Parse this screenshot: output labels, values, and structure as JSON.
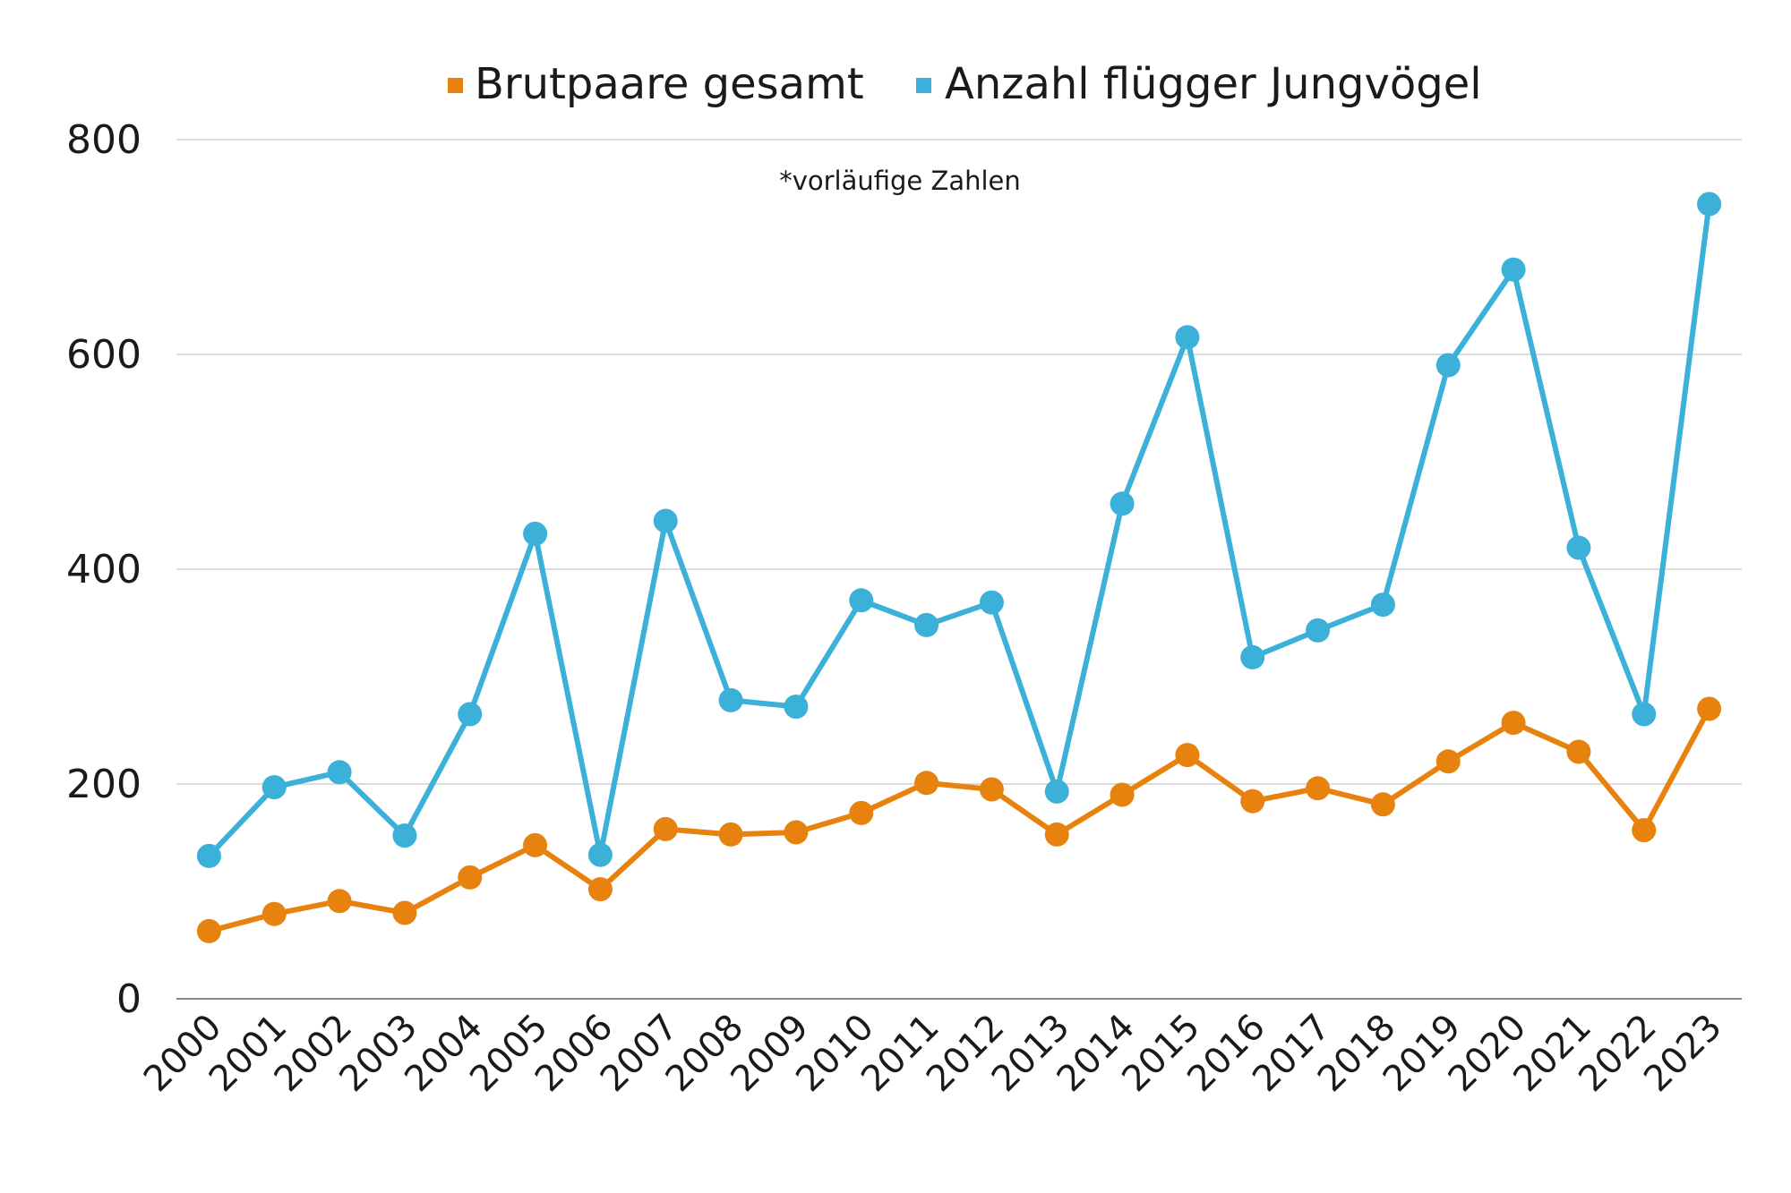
{
  "chart_data": {
    "type": "line",
    "title": "",
    "xlabel": "",
    "ylabel": "",
    "annotation": "*vorläufige Zahlen",
    "legend_position": "top",
    "grid": true,
    "ylim": [
      0,
      800
    ],
    "yticks": [
      0,
      200,
      400,
      600,
      800
    ],
    "categories": [
      "2000",
      "2001",
      "2002",
      "2003",
      "2004",
      "2005",
      "2006",
      "2007",
      "2008",
      "2009",
      "2010",
      "2011",
      "2012",
      "2013",
      "2014",
      "2015",
      "2016",
      "2017",
      "2018",
      "2019",
      "2020",
      "2021",
      "2022",
      "2023"
    ],
    "series": [
      {
        "name": "Brutpaare gesamt",
        "color": "#e8820e",
        "values": [
          63,
          79,
          91,
          80,
          113,
          143,
          102,
          158,
          153,
          155,
          173,
          201,
          195,
          153,
          190,
          227,
          184,
          196,
          181,
          221,
          257,
          230,
          157,
          270
        ]
      },
      {
        "name": "Anzahl flügger Jungvögel",
        "color": "#3bb0d8",
        "values": [
          133,
          197,
          211,
          152,
          265,
          433,
          134,
          445,
          278,
          272,
          371,
          348,
          369,
          193,
          461,
          616,
          318,
          343,
          367,
          590,
          679,
          420,
          265,
          740
        ]
      }
    ]
  }
}
